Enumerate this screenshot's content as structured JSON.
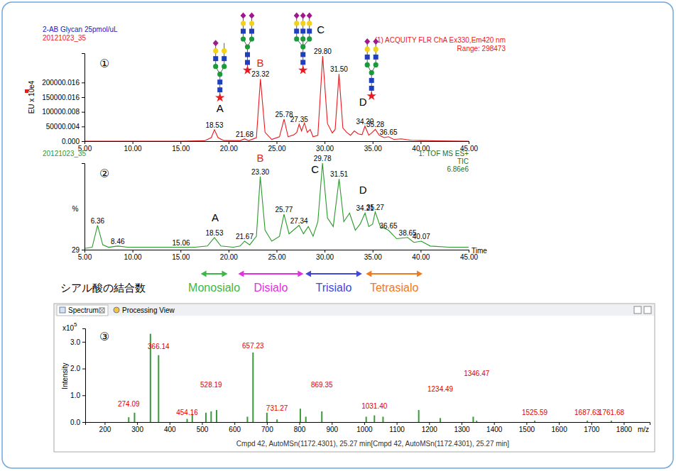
{
  "chart_data": [
    {
      "type": "line",
      "panel_label": "①",
      "header_left": [
        "2-AB Glycan 25pmol/uL",
        "20121023_35"
      ],
      "header_right": [
        "(1) ACQUITY FLR ChA Ex330,Em420 nm",
        "Range: 298473"
      ],
      "ylabel": "EU x 10e4",
      "color": "#e8191f",
      "x": [
        5,
        10,
        15,
        17.5,
        18.2,
        18.53,
        18.9,
        19.5,
        21.2,
        21.68,
        22.1,
        22.9,
        23.32,
        23.8,
        24.5,
        25.3,
        25.78,
        26.2,
        26.8,
        27.1,
        27.35,
        27.6,
        27.9,
        28.2,
        28.5,
        28.8,
        29.3,
        29.8,
        30.3,
        30.8,
        31.1,
        31.5,
        31.9,
        32.3,
        32.7,
        33.1,
        33.5,
        33.9,
        34.2,
        34.6,
        34.9,
        35.28,
        35.7,
        36.2,
        36.65,
        37.2,
        38,
        39,
        40,
        42,
        45
      ],
      "values": [
        0,
        0,
        0,
        1500,
        12000,
        39000,
        12000,
        2000,
        1500,
        8000,
        1500,
        12000,
        212000,
        30000,
        6000,
        15000,
        75000,
        15000,
        22000,
        30000,
        58000,
        35000,
        62000,
        30000,
        40000,
        15000,
        20000,
        290000,
        60000,
        28000,
        40000,
        229000,
        45000,
        30000,
        20000,
        35000,
        25000,
        22000,
        51000,
        20000,
        28000,
        40000,
        20000,
        12000,
        15000,
        6000,
        8000,
        3000,
        2000,
        1000,
        0
      ],
      "xlim": [
        5,
        45
      ],
      "xticks": [
        {
          "value": 5,
          "label": "5.00"
        },
        {
          "value": 10,
          "label": "10.00"
        },
        {
          "value": 15,
          "label": "15.00"
        },
        {
          "value": 20,
          "label": "20.00"
        },
        {
          "value": 25,
          "label": "25.00"
        },
        {
          "value": 30,
          "label": "30.00"
        },
        {
          "value": 35,
          "label": "35.00"
        },
        {
          "value": 40,
          "label": "40.00"
        },
        {
          "value": 45,
          "label": "45.00"
        }
      ],
      "ylim": [
        0,
        300000
      ],
      "yticks": [
        {
          "value": 0,
          "label": "0.000"
        },
        {
          "value": 50000.004,
          "label": "50000.004"
        },
        {
          "value": 100000.008,
          "label": "100000.008"
        },
        {
          "value": 150000.016,
          "label": "150000.016"
        },
        {
          "value": 200000.016,
          "label": "200000.016"
        }
      ],
      "peak_labels": [
        {
          "x": 18.53,
          "y": 39000,
          "label": "18.53"
        },
        {
          "x": 21.68,
          "y": 8000,
          "label": "21.68"
        },
        {
          "x": 23.32,
          "y": 212000,
          "label": "23.32"
        },
        {
          "x": 25.78,
          "y": 75000,
          "label": "25.78"
        },
        {
          "x": 27.35,
          "y": 58000,
          "label": "27.35"
        },
        {
          "x": 29.8,
          "y": 290000,
          "label": "29.80"
        },
        {
          "x": 31.5,
          "y": 229000,
          "label": "31.50"
        },
        {
          "x": 34.2,
          "y": 51000,
          "label": "34.20"
        },
        {
          "x": 35.28,
          "y": 40000,
          "label": "35.28"
        },
        {
          "x": 36.65,
          "y": 15000,
          "label": "36.65"
        }
      ],
      "letters": [
        {
          "x": 19.1,
          "y": 100000,
          "label": "A",
          "color": "#000000"
        },
        {
          "x": 23.3,
          "y": 254000,
          "label": "B",
          "color": "#e8191f"
        },
        {
          "x": 29.6,
          "y": 368000,
          "label": "C",
          "color": "#000000"
        },
        {
          "x": 34.0,
          "y": 120000,
          "label": "D",
          "color": "#000000"
        }
      ]
    },
    {
      "type": "line",
      "panel_label": "②",
      "header_left": [
        "20121023_35"
      ],
      "header_right": [
        "1: TOF MS ES+",
        "TIC",
        "6.86e6"
      ],
      "ylabel": "%",
      "xlabel": "Time",
      "color": "#2a9a2a",
      "x": [
        5,
        5.8,
        6.36,
        6.9,
        7.5,
        8.46,
        9.5,
        12,
        15.06,
        16.5,
        17.8,
        18.53,
        19.2,
        20.5,
        21.2,
        21.67,
        22.2,
        22.9,
        23.3,
        23.8,
        24.5,
        25.3,
        25.77,
        26.3,
        26.9,
        27.34,
        27.8,
        28.3,
        28.8,
        29.3,
        29.78,
        30.3,
        30.9,
        31.51,
        32,
        32.6,
        33.2,
        33.7,
        34.21,
        34.6,
        35.0,
        35.27,
        35.8,
        36.65,
        37.5,
        38.65,
        39.3,
        40.07,
        41,
        43,
        45
      ],
      "values": [
        30,
        31,
        49,
        33,
        31,
        32,
        31,
        31,
        31,
        31,
        32,
        39,
        32,
        31,
        32,
        36,
        33,
        40,
        89,
        45,
        36,
        40,
        58,
        42,
        46,
        49,
        42,
        48,
        40,
        52,
        100,
        55,
        48,
        87,
        52,
        59,
        45,
        50,
        59,
        48,
        50,
        60,
        48,
        45,
        38,
        39,
        35,
        36,
        32,
        31,
        31
      ],
      "xlim": [
        5,
        45
      ],
      "xticks": [
        {
          "value": 5,
          "label": "5.00"
        },
        {
          "value": 10,
          "label": "10.00"
        },
        {
          "value": 15,
          "label": "15.00"
        },
        {
          "value": 20,
          "label": "20.00"
        },
        {
          "value": 25,
          "label": "25.00"
        },
        {
          "value": 30,
          "label": "30.00"
        },
        {
          "value": 35,
          "label": "35.00"
        },
        {
          "value": 40,
          "label": "40.00"
        },
        {
          "value": 45,
          "label": "45.00"
        }
      ],
      "ylim": [
        29,
        100
      ],
      "yticks": [
        29
      ],
      "peak_labels": [
        {
          "x": 6.36,
          "y": 49,
          "label": "6.36"
        },
        {
          "x": 8.46,
          "y": 32,
          "label": "8.46"
        },
        {
          "x": 15.06,
          "y": 31,
          "label": "15.06"
        },
        {
          "x": 18.53,
          "y": 39,
          "label": "18.53"
        },
        {
          "x": 21.67,
          "y": 36,
          "label": "21.67"
        },
        {
          "x": 23.3,
          "y": 89,
          "label": "23.30"
        },
        {
          "x": 25.77,
          "y": 58,
          "label": "25.77"
        },
        {
          "x": 27.34,
          "y": 49,
          "label": "27.34"
        },
        {
          "x": 29.78,
          "y": 100,
          "label": "29.78"
        },
        {
          "x": 31.51,
          "y": 87,
          "label": "31.51"
        },
        {
          "x": 34.21,
          "y": 59,
          "label": "34.21"
        },
        {
          "x": 35.27,
          "y": 60,
          "label": "35.27"
        },
        {
          "x": 36.65,
          "y": 45,
          "label": "36.65"
        },
        {
          "x": 38.65,
          "y": 39,
          "label": "38.65"
        },
        {
          "x": 40.07,
          "y": 36,
          "label": "40.07"
        }
      ],
      "letters": [
        {
          "x": 18.6,
          "y": 52,
          "label": "A",
          "color": "#000000"
        },
        {
          "x": 23.3,
          "y": 101,
          "label": "B",
          "color": "#e8191f"
        },
        {
          "x": 29.0,
          "y": 92,
          "label": "C",
          "color": "#000000"
        },
        {
          "x": 34.0,
          "y": 75,
          "label": "D",
          "color": "#000000"
        }
      ],
      "ranges_title": "シアル酸の結合数",
      "ranges": [
        {
          "label": "Monosialo",
          "from": 17.1,
          "to": 19.9,
          "color": "#3cb84a"
        },
        {
          "label": "Disialo",
          "from": 21.0,
          "to": 27.8,
          "color": "#e030e0"
        },
        {
          "label": "Trisialo",
          "from": 28.0,
          "to": 33.9,
          "color": "#3f48d8"
        },
        {
          "label": "Tetrasialo",
          "from": 34.3,
          "to": 40.2,
          "color": "#f07a20"
        }
      ]
    },
    {
      "type": "bar",
      "panel_label": "③",
      "tabs": [
        "Spectrum",
        "Processing View"
      ],
      "caption": "Cmpd 42, AutoMSn(1172.4301), 25.27 min[Cmpd 42, AutoMSn(1172.4301), 25.27 min]",
      "xlabel": "m/z",
      "ylabel": "Intensity",
      "multiplier_base": "x10",
      "multiplier_exponent": "5",
      "color": "#3a9a3a",
      "x": [
        274.09,
        292,
        341,
        366.14,
        454.16,
        470,
        512,
        528.19,
        545,
        640,
        657.23,
        700,
        731.27,
        803,
        820,
        869.35,
        1006,
        1031.4,
        1058,
        1168,
        1234.49,
        1336,
        1346.47,
        1525.59,
        1687.63,
        1761.68
      ],
      "values": [
        0.18,
        0.35,
        3.3,
        2.5,
        0.12,
        0.3,
        0.35,
        0.4,
        0.45,
        0.2,
        2.6,
        0.35,
        0.1,
        0.5,
        0.2,
        0.4,
        0.2,
        0.25,
        0.2,
        0.45,
        0.15,
        0.2,
        0.05,
        0.05,
        0.05,
        0.05
      ],
      "xlim": [
        140,
        1880
      ],
      "xticks": [
        200,
        300,
        400,
        500,
        600,
        700,
        800,
        900,
        1000,
        1100,
        1200,
        1300,
        1400,
        1500,
        1600,
        1700,
        1800
      ],
      "ylim": [
        0,
        3.5
      ],
      "yticks": [
        {
          "value": 0,
          "label": "0.0"
        },
        {
          "value": 1,
          "label": "1.0"
        },
        {
          "value": 2,
          "label": "2.0"
        },
        {
          "value": 3,
          "label": "3.0"
        }
      ],
      "peak_labels": [
        {
          "x": 274.09,
          "y": 0.53,
          "label": "274.09"
        },
        {
          "x": 366.14,
          "y": 2.68,
          "label": "366.14"
        },
        {
          "x": 454.16,
          "y": 0.21,
          "label": "454.16"
        },
        {
          "x": 528.19,
          "y": 1.25,
          "label": "528.19"
        },
        {
          "x": 657.23,
          "y": 2.7,
          "label": "657.23"
        },
        {
          "x": 731.27,
          "y": 0.37,
          "label": "731.27"
        },
        {
          "x": 869.35,
          "y": 1.25,
          "label": "869.35"
        },
        {
          "x": 1031.4,
          "y": 0.45,
          "label": "1031.40"
        },
        {
          "x": 1234.49,
          "y": 1.09,
          "label": "1234.49"
        },
        {
          "x": 1346.47,
          "y": 1.67,
          "label": "1346.47"
        },
        {
          "x": 1525.59,
          "y": 0.21,
          "label": "1525.59"
        },
        {
          "x": 1687.63,
          "y": 0.21,
          "label": "1687.63"
        },
        {
          "x": 1761.68,
          "y": 0.21,
          "label": "1761.68"
        }
      ]
    }
  ]
}
